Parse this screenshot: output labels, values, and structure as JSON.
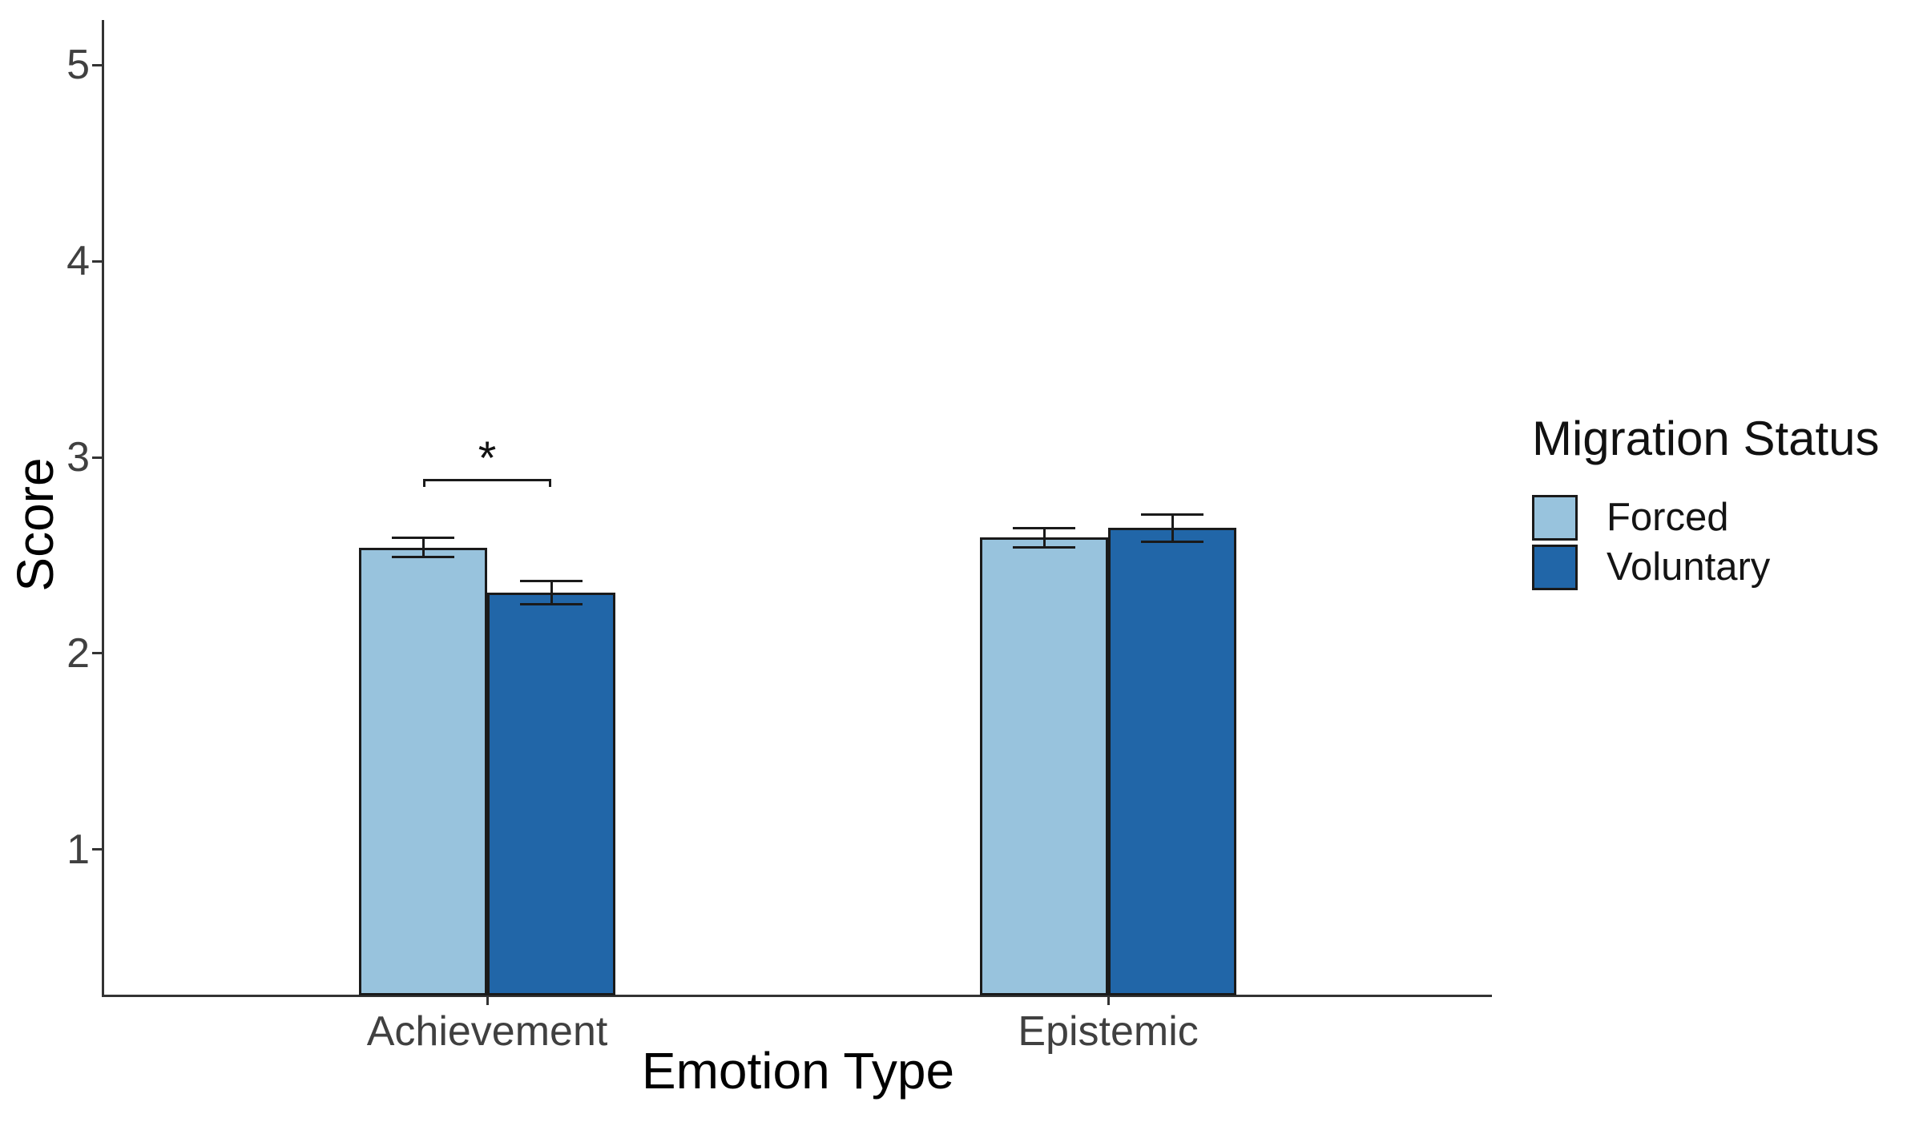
{
  "chart_data": {
    "type": "bar",
    "title": "",
    "xlabel": "Emotion Type",
    "ylabel": "Score",
    "categories": [
      "Achievement",
      "Epistemic"
    ],
    "series": [
      {
        "name": "Forced",
        "color": "#98C3DD",
        "values": [
          2.54,
          2.59
        ],
        "errors": [
          0.05,
          0.05
        ]
      },
      {
        "name": "Voluntary",
        "color": "#2166A8",
        "values": [
          2.31,
          2.64
        ],
        "errors": [
          0.06,
          0.07
        ]
      }
    ],
    "y_ticks": [
      1,
      2,
      3,
      4,
      5
    ],
    "y_axis_range": [
      0.26,
      5.23
    ],
    "grid": false,
    "legend": {
      "title": "Migration Status",
      "position": "right"
    },
    "significance": {
      "category": "Achievement",
      "between": [
        "Forced",
        "Voluntary"
      ],
      "label": "*",
      "bracket_y": 2.89,
      "label_y": 3.03
    },
    "colors": {
      "axis": "#333333",
      "tick_text": "#404040",
      "bar_border": "#1a1a1a",
      "error_bar": "#1a1a1a",
      "background": "#ffffff"
    }
  }
}
